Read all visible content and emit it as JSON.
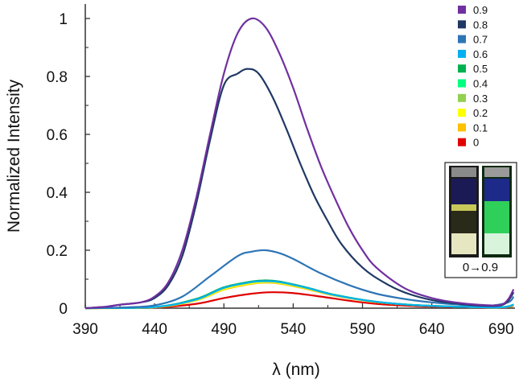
{
  "chart_data": {
    "type": "line",
    "title": "",
    "xlabel": "λ (nm)",
    "ylabel": "Normalized Intensity",
    "xlim": [
      390,
      700
    ],
    "ylim": [
      0,
      1.05
    ],
    "xticks": [
      390,
      440,
      490,
      540,
      590,
      640,
      690
    ],
    "yticks": [
      0,
      0.2,
      0.4,
      0.6,
      0.8,
      1
    ],
    "ytick_labels": [
      "0",
      "0.2",
      "0.4",
      "0.6",
      "0.8",
      "1"
    ],
    "legend_position": "top-right",
    "series": [
      {
        "name": "0.9",
        "color": "#7030a0",
        "x": [
          390,
          405,
          415,
          430,
          440,
          450,
          460,
          470,
          480,
          490,
          500,
          510,
          520,
          530,
          540,
          550,
          560,
          570,
          580,
          590,
          600,
          620,
          640,
          660,
          680,
          690,
          695,
          699
        ],
        "y": [
          0,
          0.005,
          0.012,
          0.02,
          0.04,
          0.09,
          0.2,
          0.38,
          0.6,
          0.81,
          0.95,
          1.0,
          0.97,
          0.88,
          0.76,
          0.62,
          0.49,
          0.38,
          0.28,
          0.2,
          0.14,
          0.07,
          0.035,
          0.018,
          0.01,
          0.012,
          0.03,
          0.065
        ]
      },
      {
        "name": "0.8",
        "color": "#1f3864",
        "x": [
          390,
          405,
          415,
          430,
          440,
          450,
          460,
          470,
          480,
          490,
          500,
          507,
          515,
          525,
          535,
          545,
          555,
          565,
          575,
          590,
          605,
          620,
          640,
          660,
          680,
          690,
          695,
          699
        ],
        "y": [
          0,
          0.005,
          0.012,
          0.02,
          0.035,
          0.08,
          0.18,
          0.36,
          0.58,
          0.77,
          0.81,
          0.826,
          0.81,
          0.73,
          0.62,
          0.5,
          0.39,
          0.3,
          0.22,
          0.14,
          0.09,
          0.055,
          0.028,
          0.015,
          0.008,
          0.01,
          0.025,
          0.055
        ]
      },
      {
        "name": "0.7",
        "color": "#2e75b6",
        "x": [
          390,
          420,
          440,
          460,
          480,
          500,
          510,
          520,
          530,
          540,
          560,
          580,
          600,
          620,
          640,
          660,
          680,
          695,
          699
        ],
        "y": [
          0,
          0.003,
          0.01,
          0.04,
          0.11,
          0.18,
          0.195,
          0.2,
          0.19,
          0.17,
          0.12,
          0.08,
          0.05,
          0.032,
          0.02,
          0.012,
          0.008,
          0.02,
          0.04
        ]
      },
      {
        "name": "0.6",
        "color": "#00b0f0",
        "x": [
          390,
          440,
          470,
          490,
          510,
          520,
          530,
          550,
          570,
          600,
          630,
          660,
          690,
          699
        ],
        "y": [
          0,
          0.004,
          0.03,
          0.07,
          0.09,
          0.093,
          0.09,
          0.07,
          0.045,
          0.022,
          0.01,
          0.005,
          0.003,
          0.012
        ]
      },
      {
        "name": "0.5",
        "color": "#00b050",
        "x": [
          390,
          440,
          470,
          490,
          510,
          520,
          530,
          550,
          570,
          600,
          630,
          660,
          690,
          699
        ],
        "y": [
          0,
          0.004,
          0.032,
          0.072,
          0.092,
          0.096,
          0.092,
          0.071,
          0.046,
          0.022,
          0.01,
          0.005,
          0.003,
          0.012
        ]
      },
      {
        "name": "0.4",
        "color": "#00ff80",
        "x": [
          390,
          440,
          470,
          490,
          510,
          520,
          530,
          550,
          570,
          600,
          630,
          660,
          690,
          699
        ],
        "y": [
          0,
          0.004,
          0.031,
          0.071,
          0.091,
          0.095,
          0.091,
          0.07,
          0.046,
          0.022,
          0.01,
          0.005,
          0.003,
          0.012
        ]
      },
      {
        "name": "0.3",
        "color": "#92d050",
        "x": [
          390,
          440,
          470,
          490,
          510,
          520,
          530,
          550,
          570,
          600,
          630,
          660,
          690,
          699
        ],
        "y": [
          0,
          0.004,
          0.03,
          0.07,
          0.09,
          0.094,
          0.09,
          0.07,
          0.045,
          0.022,
          0.01,
          0.005,
          0.003,
          0.012
        ]
      },
      {
        "name": "0.2",
        "color": "#ffff00",
        "x": [
          390,
          440,
          470,
          490,
          510,
          520,
          530,
          550,
          570,
          600,
          630,
          660,
          690,
          699
        ],
        "y": [
          0,
          0.003,
          0.028,
          0.066,
          0.086,
          0.09,
          0.087,
          0.068,
          0.044,
          0.021,
          0.01,
          0.005,
          0.003,
          0.01
        ]
      },
      {
        "name": "0.1",
        "color": "#ffc000",
        "x": [
          390,
          440,
          470,
          490,
          510,
          520,
          530,
          550,
          570,
          600,
          630,
          660,
          690,
          699
        ],
        "y": [
          0,
          0.003,
          0.027,
          0.064,
          0.084,
          0.088,
          0.085,
          0.066,
          0.043,
          0.021,
          0.01,
          0.005,
          0.003,
          0.01
        ]
      },
      {
        "name": "0",
        "color": "#e00000",
        "x": [
          390,
          440,
          470,
          490,
          510,
          525,
          540,
          560,
          580,
          600,
          630,
          660,
          690,
          699
        ],
        "y": [
          0,
          0.002,
          0.015,
          0.035,
          0.05,
          0.055,
          0.052,
          0.04,
          0.026,
          0.015,
          0.007,
          0.004,
          0.002,
          0.008
        ]
      }
    ]
  },
  "inset": {
    "label": "0→0.9"
  }
}
